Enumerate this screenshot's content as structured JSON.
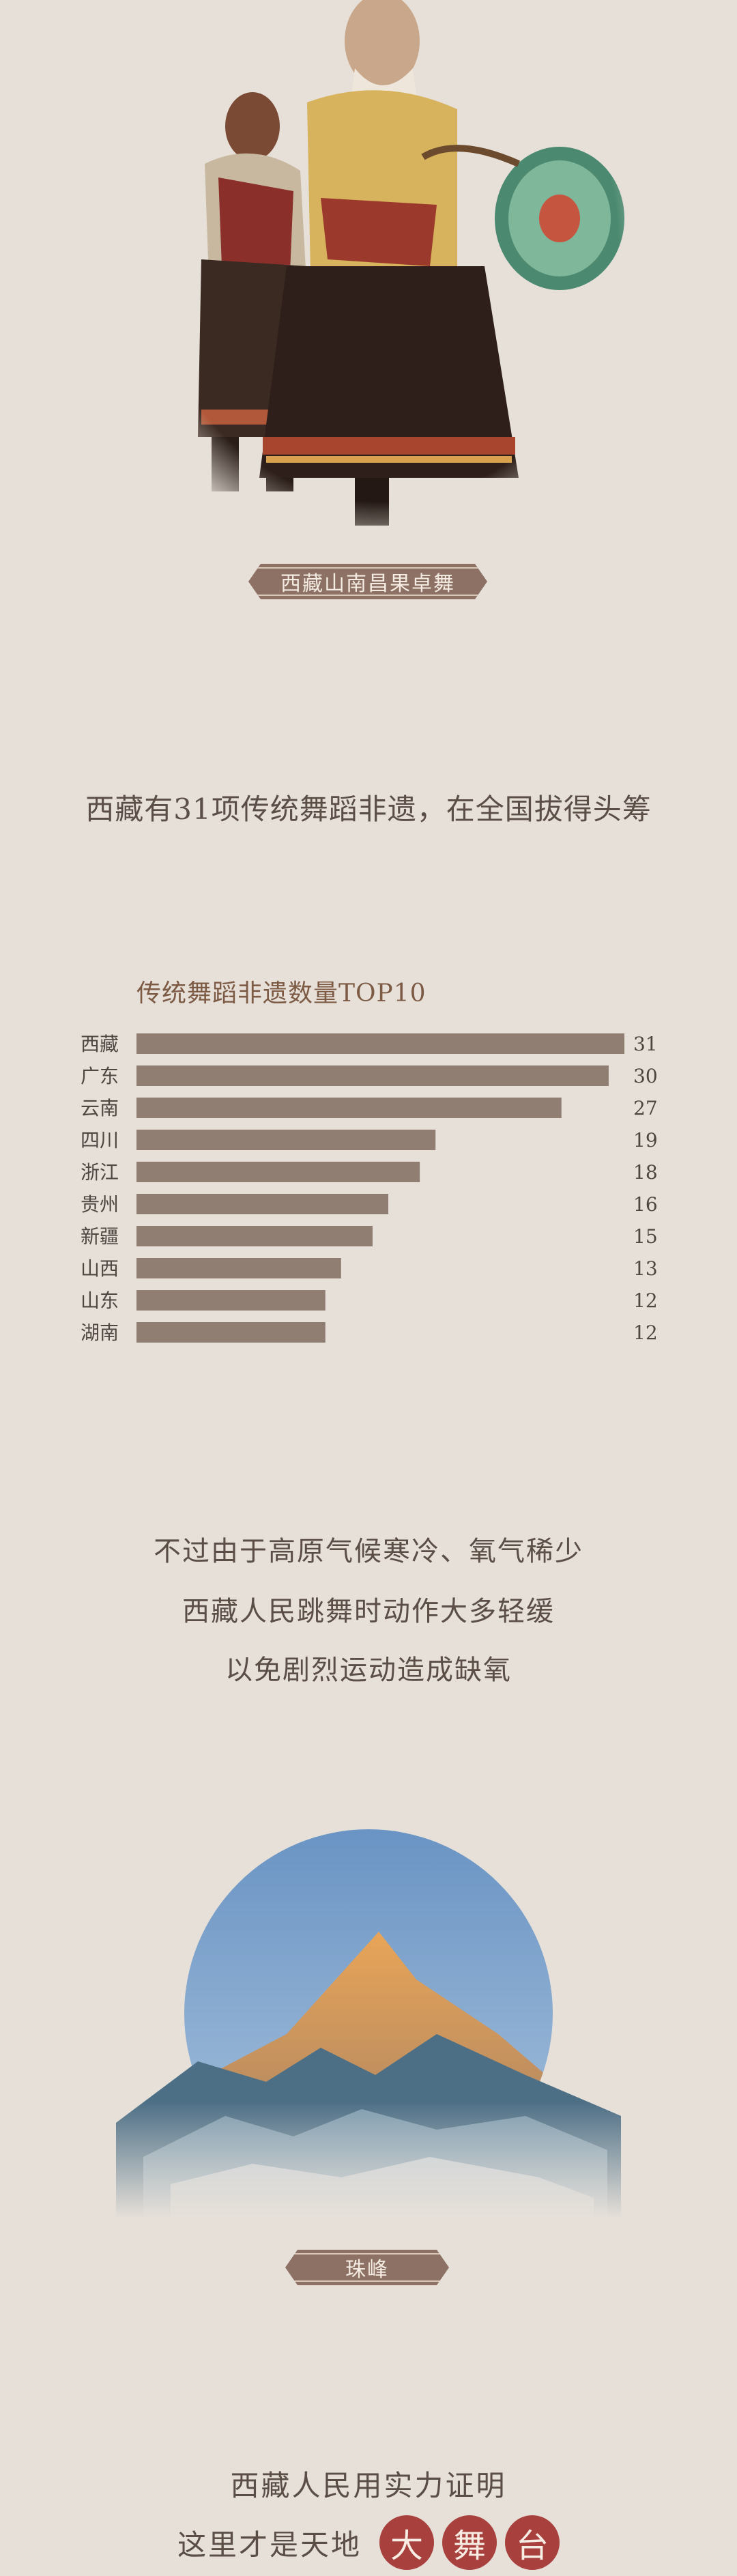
{
  "photo_caption": "西藏山南昌果卓舞",
  "headline": "西藏有31项传统舞蹈非遗，在全国拔得头筹",
  "chart_data": {
    "type": "bar",
    "orientation": "horizontal",
    "title": "传统舞蹈非遗数量TOP10",
    "categories": [
      "西藏",
      "广东",
      "云南",
      "四川",
      "浙江",
      "贵州",
      "新疆",
      "山西",
      "山东",
      "湖南"
    ],
    "values": [
      31,
      30,
      27,
      19,
      18,
      16,
      15,
      13,
      12,
      12
    ],
    "xlim": [
      0,
      31
    ],
    "bar_color": "#907e73",
    "grid": false,
    "legend": "none"
  },
  "paragraph": [
    "不过由于高原气候寒冷、氧气稀少",
    "西藏人民跳舞时动作大多轻缓",
    "以免剧烈运动造成缺氧"
  ],
  "mountain_caption": "珠峰",
  "closing": {
    "line1": "西藏人民用实力证明",
    "line2_prefix": "这里才是天地",
    "highlight_chars": [
      "大",
      "舞",
      "台"
    ],
    "highlight_color": "#a8403d"
  }
}
